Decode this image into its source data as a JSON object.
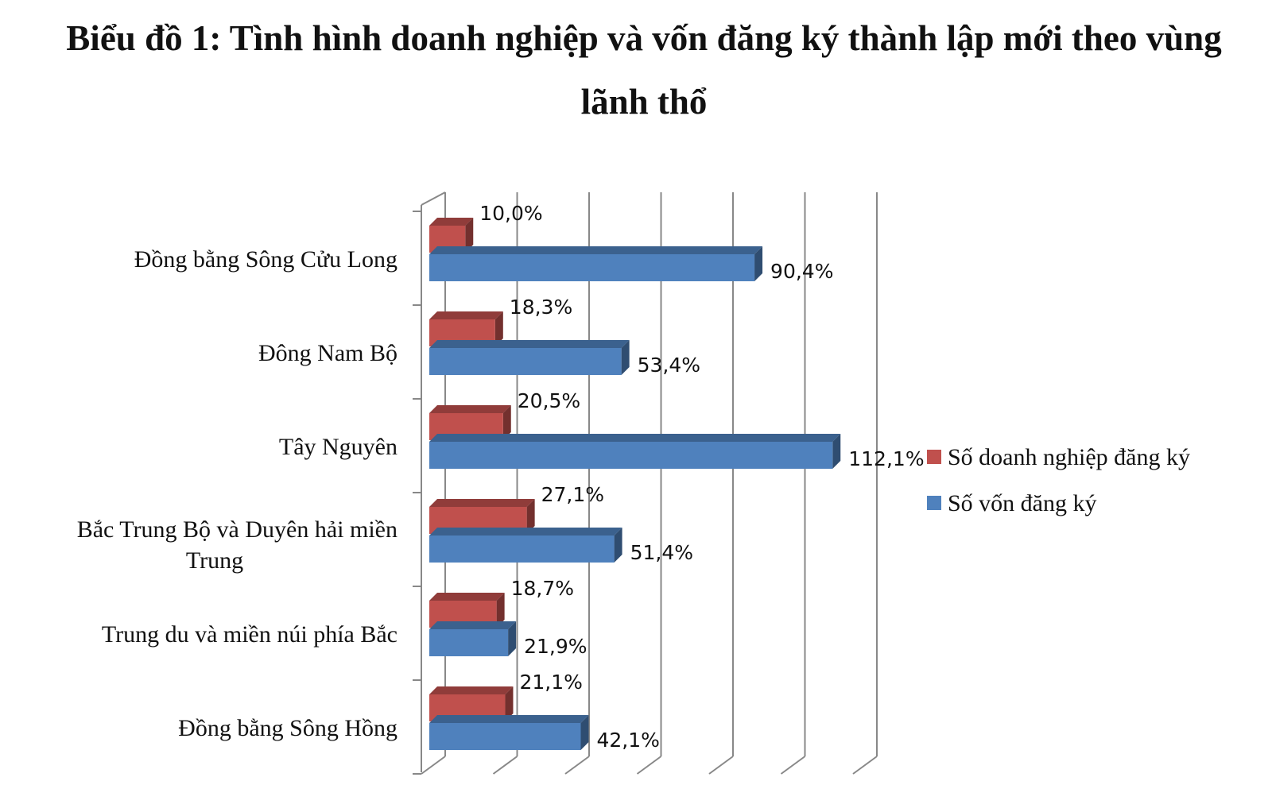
{
  "chart_data": {
    "type": "bar",
    "orientation": "horizontal",
    "title_lines": [
      "Biểu đồ 1: Tình hình doanh nghiệp và vốn đăng ký thành lập mới theo vùng",
      "lãnh thổ"
    ],
    "categories": [
      "Đồng bằng Sông Cửu Long",
      "Đông Nam Bộ",
      "Tây Nguyên",
      "Bắc Trung Bộ và Duyên hải miền Trung",
      "Trung du và miền núi phía Bắc",
      "Đồng bằng Sông Hồng"
    ],
    "series": [
      {
        "name": "Số doanh nghiệp đăng ký",
        "color": "#c0504d",
        "values": [
          10.0,
          18.3,
          20.5,
          27.1,
          18.7,
          21.1
        ],
        "labels": [
          "10,0%",
          "18,3%",
          "20,5%",
          "27,1%",
          "18,7%",
          "21,1%"
        ]
      },
      {
        "name": "Số vốn đăng ký",
        "color": "#4f81bd",
        "values": [
          90.4,
          53.4,
          112.1,
          51.4,
          21.9,
          42.1
        ],
        "labels": [
          "90,4%",
          "53,4%",
          "112,1%",
          "51,4%",
          "21,9%",
          "42,1%"
        ]
      }
    ],
    "xlim": [
      0,
      120
    ],
    "grid": true,
    "legend_position": "right"
  }
}
